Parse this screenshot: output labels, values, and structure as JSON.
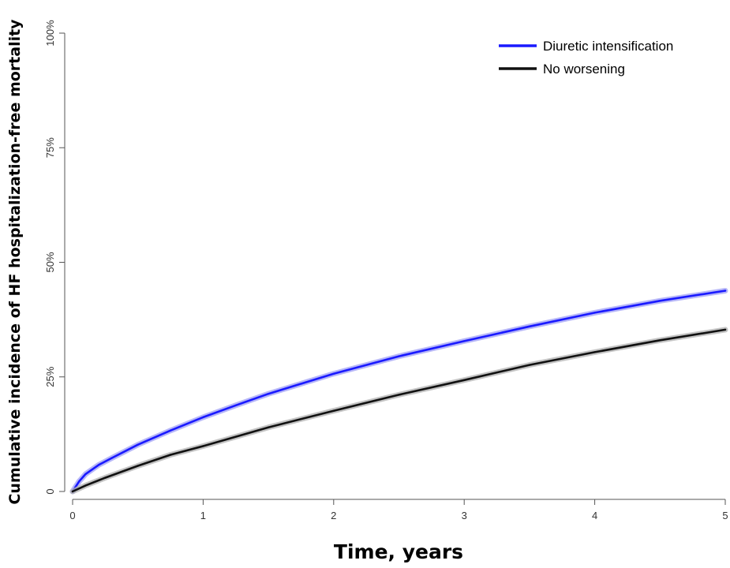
{
  "chart_data": {
    "type": "line",
    "title": "",
    "xlabel": "Time, years",
    "ylabel": "Cumulative incidence of HF hospitalization-free mortality",
    "xlim": [
      0,
      5
    ],
    "ylim": [
      0,
      100
    ],
    "x_ticks": [
      {
        "value": 0,
        "label": "0"
      },
      {
        "value": 1,
        "label": "1"
      },
      {
        "value": 2,
        "label": "2"
      },
      {
        "value": 3,
        "label": "3"
      },
      {
        "value": 4,
        "label": "4"
      },
      {
        "value": 5,
        "label": "5"
      }
    ],
    "y_ticks": [
      {
        "value": 0,
        "label": "0"
      },
      {
        "value": 25,
        "label": "25%"
      },
      {
        "value": 50,
        "label": "50%"
      },
      {
        "value": 75,
        "label": "75%"
      },
      {
        "value": 100,
        "label": "100%"
      }
    ],
    "grid": false,
    "legend_position": "top-right",
    "series": [
      {
        "name": "Diuretic intensification",
        "color": "#1a1aff",
        "band_color": "#9f9ff5",
        "x": [
          0,
          0.05,
          0.1,
          0.2,
          0.3,
          0.5,
          0.75,
          1,
          1.25,
          1.5,
          2,
          2.5,
          3,
          3.5,
          4,
          4.5,
          5
        ],
        "y": [
          0,
          2.2,
          3.8,
          5.8,
          7.3,
          10.2,
          13.3,
          16.2,
          18.8,
          21.3,
          25.7,
          29.5,
          32.8,
          36.0,
          39.0,
          41.6,
          43.8
        ]
      },
      {
        "name": "No worsening",
        "color": "#111111",
        "band_color": "#b0b0b0",
        "x": [
          0,
          0.1,
          0.25,
          0.5,
          0.75,
          1,
          1.5,
          2,
          2.5,
          3,
          3.5,
          4,
          4.5,
          5
        ],
        "y": [
          0,
          1.3,
          3.0,
          5.6,
          8.0,
          9.9,
          14.0,
          17.6,
          21.1,
          24.3,
          27.6,
          30.4,
          33.0,
          35.3
        ]
      }
    ]
  }
}
